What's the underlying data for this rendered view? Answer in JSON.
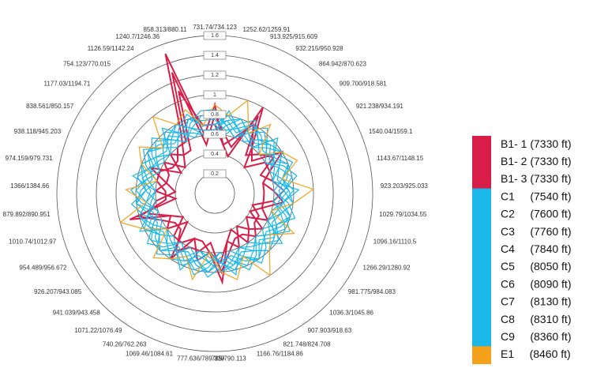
{
  "chart_data": {
    "type": "radar",
    "categories": [
      "731.74/734.123",
      "1252.62/1259.91",
      "913.925/915.609",
      "932.215/950.928",
      "864.942/870.623",
      "909.700/918.581",
      "921.238/934.191",
      "1540.04/1559.1",
      "1143.67/1148.15",
      "923.203/925.033",
      "1029.79/1034.55",
      "1096.16/1110.5",
      "1266.29/1280.92",
      "981.775/984.083",
      "1036.3/1045.86",
      "907.903/918.63",
      "821.748/824.708",
      "1166.76/1184.86",
      "785/790.113",
      "777.636/789.339",
      "1069.46/1084.61",
      "740.26/762.263",
      "1071.22/1076.49",
      "941.039/943.458",
      "926.207/943.085",
      "954.489/956.672",
      "1010.74/1012.97",
      "879.892/890.951",
      "1366/1384.66",
      "974.159/979.731",
      "938.118/945.203",
      "838.561/850.157",
      "1177.03/1194.71",
      "754.123/770.015",
      "1126.59/1142.24",
      "1240.7/1246.36",
      "858.313/880.11"
    ],
    "rlim": [
      0,
      1.6
    ],
    "rticks": [
      0.2,
      0.4,
      0.6,
      0.8,
      1.0,
      1.2,
      1.4,
      1.6
    ],
    "series": [
      {
        "name": "B1- 1 (7330 ft)",
        "color": "#d81e48",
        "values": [
          0.9,
          0.5,
          0.4,
          1.0,
          0.6,
          0.5,
          0.8,
          0.6,
          0.5,
          0.6,
          0.7,
          0.5,
          0.4,
          0.6,
          0.5,
          0.4,
          0.6,
          0.5,
          0.9,
          0.6,
          0.7,
          0.5,
          0.8,
          0.4,
          0.6,
          0.5,
          0.9,
          0.4,
          0.6,
          0.5,
          0.7,
          0.4,
          0.6,
          0.5,
          0.7,
          1.5,
          0.6
        ]
      },
      {
        "name": "B1- 2 (7330 ft)",
        "color": "#d81e48",
        "values": [
          0.8,
          0.6,
          0.5,
          0.9,
          0.5,
          0.6,
          0.7,
          0.5,
          0.6,
          0.7,
          0.6,
          0.4,
          0.5,
          0.5,
          0.6,
          0.5,
          0.5,
          0.6,
          0.8,
          0.5,
          0.6,
          0.6,
          0.7,
          0.5,
          0.5,
          0.6,
          0.8,
          0.5,
          0.5,
          0.6,
          0.6,
          0.5,
          0.5,
          0.6,
          0.6,
          1.3,
          0.5
        ]
      },
      {
        "name": "B1- 3 (7330 ft)",
        "color": "#d81e48",
        "values": [
          0.7,
          0.5,
          0.6,
          0.8,
          0.6,
          0.4,
          0.6,
          0.6,
          0.5,
          0.5,
          0.5,
          0.5,
          0.6,
          0.4,
          0.5,
          0.6,
          0.4,
          0.5,
          0.7,
          0.6,
          0.5,
          0.5,
          0.6,
          0.6,
          0.4,
          0.5,
          0.7,
          0.6,
          0.4,
          0.5,
          0.5,
          0.6,
          0.4,
          0.5,
          0.5,
          1.1,
          0.7
        ]
      },
      {
        "name": "C1     (7540 ft)",
        "color": "#1ab8e8",
        "values": [
          0.8,
          0.7,
          0.6,
          0.7,
          0.8,
          0.7,
          0.6,
          0.7,
          0.8,
          0.7,
          0.6,
          0.7,
          0.8,
          0.7,
          0.6,
          0.7,
          0.8,
          0.7,
          0.6,
          0.7,
          0.8,
          0.7,
          0.6,
          0.7,
          0.8,
          0.7,
          0.6,
          0.7,
          0.8,
          0.7,
          0.6,
          0.7,
          0.8,
          0.7,
          0.6,
          0.7,
          0.8
        ]
      },
      {
        "name": "C2     (7600 ft)",
        "color": "#1ab8e8",
        "values": [
          0.7,
          0.8,
          0.7,
          0.6,
          0.7,
          0.8,
          0.7,
          0.6,
          0.7,
          0.8,
          0.7,
          0.6,
          0.7,
          0.8,
          0.7,
          0.6,
          0.7,
          0.8,
          0.7,
          0.6,
          0.7,
          0.8,
          0.7,
          0.6,
          0.7,
          0.8,
          0.7,
          0.6,
          0.7,
          0.8,
          0.7,
          0.6,
          0.7,
          0.8,
          0.7,
          0.6,
          0.7
        ]
      },
      {
        "name": "C3     (7760 ft)",
        "color": "#1ab8e8",
        "values": [
          0.6,
          0.7,
          0.8,
          0.7,
          0.6,
          0.7,
          0.8,
          0.7,
          0.6,
          0.7,
          0.8,
          0.7,
          0.6,
          0.7,
          0.8,
          0.7,
          0.6,
          0.7,
          0.8,
          0.7,
          0.6,
          0.7,
          0.8,
          0.7,
          0.6,
          0.7,
          0.8,
          0.7,
          0.6,
          0.7,
          0.8,
          0.7,
          0.6,
          0.7,
          0.8,
          0.7,
          0.6
        ]
      },
      {
        "name": "C4     (7840 ft)",
        "color": "#1ab8e8",
        "values": [
          0.75,
          0.65,
          0.7,
          0.8,
          0.75,
          0.65,
          0.7,
          0.8,
          0.75,
          0.65,
          0.7,
          0.8,
          0.75,
          0.65,
          0.7,
          0.8,
          0.75,
          0.65,
          0.7,
          0.8,
          0.75,
          0.65,
          0.7,
          0.8,
          0.75,
          0.65,
          0.7,
          0.8,
          0.75,
          0.65,
          0.7,
          0.8,
          0.75,
          0.65,
          0.7,
          0.8,
          0.75
        ]
      },
      {
        "name": "C5     (8050 ft)",
        "color": "#1ab8e8",
        "values": [
          0.65,
          0.75,
          0.8,
          0.7,
          0.65,
          0.75,
          0.8,
          0.7,
          0.65,
          0.75,
          0.8,
          0.7,
          0.65,
          0.75,
          0.8,
          0.7,
          0.65,
          0.75,
          0.8,
          0.7,
          0.65,
          0.75,
          0.8,
          0.7,
          0.65,
          0.75,
          0.8,
          0.7,
          0.65,
          0.75,
          0.8,
          0.7,
          0.65,
          0.75,
          0.8,
          0.7,
          0.65
        ]
      },
      {
        "name": "C6     (8090 ft)",
        "color": "#1ab8e8",
        "values": [
          0.7,
          0.6,
          0.75,
          0.85,
          0.7,
          0.6,
          0.75,
          0.85,
          0.7,
          0.6,
          0.75,
          0.85,
          0.7,
          0.6,
          0.75,
          0.85,
          0.7,
          0.6,
          0.75,
          0.85,
          0.7,
          0.6,
          0.75,
          0.85,
          0.7,
          0.6,
          0.75,
          0.85,
          0.7,
          0.6,
          0.75,
          0.85,
          0.7,
          0.6,
          0.75,
          0.85,
          0.7
        ]
      },
      {
        "name": "C7     (8130 ft)",
        "color": "#1ab8e8",
        "values": [
          0.85,
          0.7,
          0.6,
          0.75,
          0.85,
          0.7,
          0.6,
          0.75,
          0.85,
          0.7,
          0.6,
          0.75,
          0.85,
          0.7,
          0.6,
          0.75,
          0.85,
          0.7,
          0.6,
          0.75,
          0.85,
          0.7,
          0.6,
          0.75,
          0.85,
          0.7,
          0.6,
          0.75,
          0.85,
          0.7,
          0.6,
          0.75,
          0.85,
          0.7,
          0.6,
          0.75,
          0.85
        ]
      },
      {
        "name": "C8     (8310 ft)",
        "color": "#1ab8e8",
        "values": [
          0.6,
          0.85,
          0.7,
          0.65,
          0.6,
          0.85,
          0.7,
          0.65,
          0.6,
          0.85,
          0.7,
          0.65,
          0.6,
          0.85,
          0.7,
          0.65,
          0.6,
          0.85,
          0.7,
          0.65,
          0.6,
          0.85,
          0.7,
          0.65,
          0.6,
          0.85,
          0.7,
          0.65,
          0.6,
          0.85,
          0.7,
          0.65,
          0.6,
          0.85,
          0.7,
          0.65,
          0.6
        ]
      },
      {
        "name": "C9     (8360 ft)",
        "color": "#1ab8e8",
        "values": [
          0.7,
          0.75,
          0.65,
          0.8,
          0.7,
          0.75,
          0.65,
          0.8,
          0.7,
          0.75,
          0.65,
          0.8,
          0.7,
          0.75,
          0.65,
          0.8,
          0.7,
          0.75,
          0.65,
          0.8,
          0.7,
          0.75,
          0.65,
          0.8,
          0.7,
          0.75,
          0.65,
          0.8,
          0.7,
          0.75,
          0.65,
          0.8,
          0.7,
          0.75,
          0.65,
          0.8,
          0.7
        ]
      },
      {
        "name": "E1     (8460 ft)",
        "color": "#f4a21c",
        "values": [
          0.9,
          0.8,
          1.0,
          0.7,
          0.9,
          0.6,
          0.8,
          0.9,
          0.7,
          1.0,
          0.8,
          0.6,
          0.9,
          0.7,
          0.8,
          1.0,
          0.7,
          0.9,
          0.8,
          0.6,
          0.9,
          0.7,
          0.8,
          0.9,
          0.6,
          0.8,
          1.0,
          0.7,
          0.9,
          0.6,
          0.8,
          0.9,
          0.7,
          1.0,
          0.8,
          0.9,
          0.7
        ]
      }
    ]
  }
}
